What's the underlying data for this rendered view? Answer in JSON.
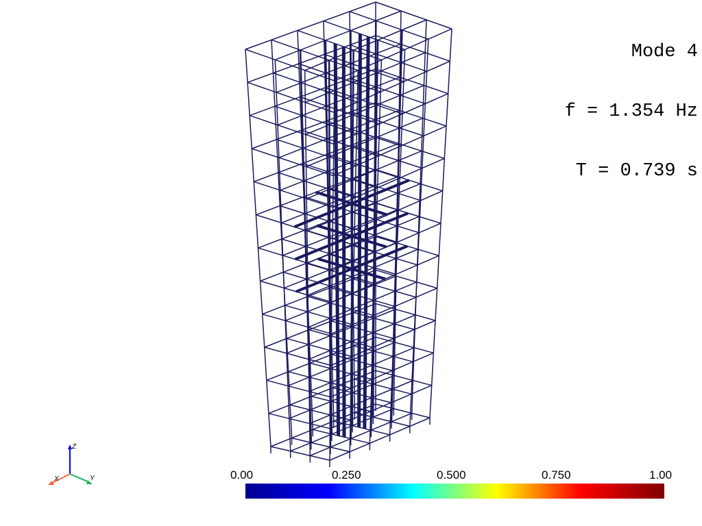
{
  "mode_info": {
    "mode_line": "Mode 4",
    "freq_line": "f = 1.354 Hz",
    "period_line": "T = 0.739 s"
  },
  "colorbar": {
    "ticks": [
      "0.00",
      "0.250",
      "0.500",
      "0.750",
      "1.00"
    ],
    "colormap": "jet",
    "stops": [
      "#00008f",
      "#0000ff",
      "#00ffff",
      "#ffff00",
      "#ff0000",
      "#800000"
    ]
  },
  "structure": {
    "stories": 12,
    "line_color": "#1a1a5e"
  },
  "axes": {
    "z_label": "Z",
    "x_label": "X",
    "y_label": "Y",
    "z_color": "#0000ff",
    "x_color": "#ff6040",
    "y_color": "#20b060"
  }
}
